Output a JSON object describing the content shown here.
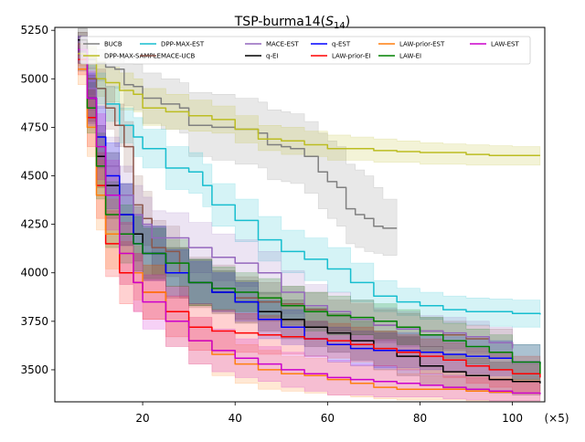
{
  "chart_data": {
    "type": "line",
    "title_main": "TSP-burma14(",
    "title_sub_var": "S",
    "title_sub_idx": "14",
    "title_close": ")",
    "x_multiplier_label": "(×5)",
    "xlim": [
      1,
      107
    ],
    "ylim": [
      3335,
      5265
    ],
    "xticks": [
      20,
      40,
      60,
      80,
      100
    ],
    "yticks": [
      3500,
      3750,
      4000,
      4250,
      4500,
      4750,
      5000,
      5250
    ],
    "legend_placement": "top-center, 6 columns",
    "series": [
      {
        "name": "BUCB",
        "color": "#808080",
        "x": [
          6,
          8,
          10,
          12,
          14,
          16,
          18,
          20,
          24,
          28,
          30,
          35,
          40,
          45,
          47,
          50,
          52,
          55,
          58,
          60,
          62,
          64,
          66,
          68,
          70,
          72,
          75
        ],
        "y": [
          5180,
          5100,
          5080,
          5060,
          5050,
          4970,
          4960,
          4900,
          4870,
          4850,
          4760,
          4750,
          4740,
          4720,
          4660,
          4650,
          4640,
          4600,
          4520,
          4470,
          4440,
          4330,
          4300,
          4280,
          4240,
          4230,
          4230
        ],
        "upper": [
          5240,
          5160,
          5150,
          5140,
          5130,
          5080,
          5075,
          5030,
          5000,
          4980,
          4930,
          4920,
          4900,
          4880,
          4840,
          4830,
          4820,
          4780,
          4720,
          4680,
          4650,
          4560,
          4530,
          4500,
          4440,
          4380,
          4360
        ],
        "lower": [
          5120,
          5050,
          4990,
          4960,
          4950,
          4860,
          4840,
          4770,
          4740,
          4720,
          4600,
          4580,
          4560,
          4540,
          4480,
          4470,
          4460,
          4410,
          4330,
          4280,
          4240,
          4150,
          4130,
          4110,
          4100,
          4090,
          4090
        ]
      },
      {
        "name": "DPP-MAX-SAMPLE",
        "color": "#bcbd22",
        "x": [
          6,
          8,
          10,
          12,
          15,
          18,
          20,
          25,
          30,
          35,
          40,
          45,
          50,
          55,
          60,
          65,
          70,
          75,
          80,
          85,
          90,
          95,
          100,
          106
        ],
        "y": [
          5130,
          5110,
          5000,
          4980,
          4940,
          4920,
          4850,
          4830,
          4810,
          4790,
          4740,
          4690,
          4680,
          4660,
          4640,
          4640,
          4630,
          4625,
          4620,
          4620,
          4610,
          4605,
          4605,
          4605
        ],
        "upper": [
          5200,
          5170,
          5090,
          5060,
          5030,
          5000,
          4950,
          4920,
          4890,
          4860,
          4810,
          4760,
          4750,
          4730,
          4710,
          4700,
          4690,
          4680,
          4670,
          4665,
          4660,
          4655,
          4650,
          4650
        ],
        "lower": [
          5070,
          5050,
          4910,
          4880,
          4840,
          4830,
          4760,
          4740,
          4730,
          4720,
          4670,
          4630,
          4610,
          4600,
          4580,
          4580,
          4570,
          4570,
          4560,
          4560,
          4555,
          4555,
          4555,
          4555
        ]
      },
      {
        "name": "DPP-MAX-EST",
        "color": "#17becf",
        "x": [
          6,
          8,
          10,
          12,
          15,
          18,
          20,
          25,
          30,
          33,
          35,
          40,
          45,
          50,
          55,
          60,
          65,
          70,
          75,
          80,
          85,
          90,
          95,
          100,
          106
        ],
        "y": [
          5100,
          5000,
          4950,
          4870,
          4760,
          4700,
          4640,
          4540,
          4520,
          4450,
          4350,
          4270,
          4170,
          4110,
          4070,
          4020,
          3950,
          3880,
          3850,
          3830,
          3810,
          3800,
          3800,
          3790,
          3785
        ],
        "upper": [
          5150,
          5070,
          5030,
          4960,
          4850,
          4800,
          4740,
          4650,
          4620,
          4560,
          4460,
          4380,
          4290,
          4220,
          4180,
          4130,
          4050,
          3960,
          3920,
          3900,
          3880,
          3870,
          3865,
          3860,
          3855
        ],
        "lower": [
          5040,
          4920,
          4870,
          4780,
          4670,
          4600,
          4540,
          4430,
          4410,
          4340,
          4240,
          4160,
          4060,
          4000,
          3960,
          3900,
          3850,
          3800,
          3780,
          3760,
          3740,
          3730,
          3725,
          3720,
          3715
        ]
      },
      {
        "name": "MACE-UCB",
        "color": "#8c564b",
        "x": [
          6,
          8,
          10,
          12,
          14,
          16,
          18,
          20,
          22,
          25,
          28,
          30,
          35,
          40,
          45,
          50,
          55,
          60,
          65,
          70,
          75,
          80,
          85,
          90,
          95,
          100
        ],
        "y": [
          5180,
          5000,
          4950,
          4850,
          4760,
          4650,
          4350,
          4280,
          4130,
          4110,
          4000,
          3950,
          3920,
          3870,
          3850,
          3840,
          3810,
          3780,
          3760,
          3730,
          3710,
          3700,
          3680,
          3660,
          3640,
          3620
        ],
        "upper": [
          5240,
          5100,
          5050,
          4960,
          4870,
          4780,
          4500,
          4420,
          4270,
          4240,
          4130,
          4080,
          4040,
          3980,
          3950,
          3930,
          3900,
          3860,
          3840,
          3810,
          3790,
          3770,
          3750,
          3730,
          3710,
          3690
        ],
        "lower": [
          5120,
          4900,
          4850,
          4740,
          4650,
          4520,
          4200,
          4140,
          3990,
          3980,
          3870,
          3820,
          3800,
          3760,
          3750,
          3750,
          3720,
          3700,
          3680,
          3650,
          3630,
          3620,
          3600,
          3580,
          3560,
          3550
        ]
      },
      {
        "name": "MACE-EST",
        "color": "#9467bd",
        "x": [
          6,
          8,
          10,
          12,
          15,
          18,
          20,
          22,
          25,
          30,
          35,
          40,
          45,
          50,
          55,
          60,
          65,
          70,
          75,
          80,
          85,
          90,
          95,
          100
        ],
        "y": [
          5100,
          4950,
          4700,
          4550,
          4400,
          4300,
          4250,
          4180,
          4180,
          4130,
          4080,
          4050,
          4000,
          3900,
          3830,
          3800,
          3760,
          3730,
          3710,
          3700,
          3690,
          3670,
          3640,
          3610
        ],
        "upper": [
          5160,
          5060,
          4850,
          4700,
          4550,
          4450,
          4390,
          4320,
          4310,
          4260,
          4200,
          4170,
          4110,
          4010,
          3940,
          3900,
          3860,
          3820,
          3800,
          3780,
          3770,
          3750,
          3720,
          3690
        ],
        "lower": [
          5040,
          4840,
          4550,
          4400,
          4250,
          4150,
          4110,
          4040,
          4050,
          4000,
          3960,
          3930,
          3890,
          3790,
          3720,
          3700,
          3660,
          3640,
          3620,
          3620,
          3610,
          3590,
          3560,
          3530
        ]
      },
      {
        "name": "q-EI",
        "color": "#000000",
        "x": [
          6,
          8,
          10,
          12,
          15,
          18,
          20,
          25,
          30,
          35,
          40,
          45,
          50,
          55,
          60,
          65,
          70,
          75,
          80,
          85,
          90,
          95,
          100,
          106
        ],
        "y": [
          5200,
          4900,
          4600,
          4450,
          4300,
          4200,
          4100,
          4000,
          3950,
          3900,
          3850,
          3800,
          3760,
          3720,
          3690,
          3650,
          3600,
          3570,
          3520,
          3490,
          3470,
          3450,
          3440,
          3430
        ],
        "upper": [
          5260,
          5020,
          4760,
          4620,
          4460,
          4340,
          4240,
          4130,
          4070,
          4010,
          3960,
          3900,
          3860,
          3820,
          3790,
          3750,
          3700,
          3670,
          3620,
          3580,
          3560,
          3540,
          3530,
          3520
        ],
        "lower": [
          5140,
          4780,
          4440,
          4280,
          4140,
          4060,
          3960,
          3870,
          3830,
          3790,
          3740,
          3700,
          3660,
          3620,
          3590,
          3550,
          3500,
          3470,
          3420,
          3400,
          3390,
          3380,
          3370,
          3365
        ]
      },
      {
        "name": "q-EST",
        "color": "#0000ff",
        "x": [
          6,
          8,
          10,
          12,
          15,
          18,
          20,
          25,
          30,
          35,
          40,
          45,
          50,
          55,
          60,
          65,
          70,
          75,
          80,
          85,
          90,
          95,
          100,
          106
        ],
        "y": [
          5150,
          4900,
          4700,
          4500,
          4300,
          4150,
          4100,
          4000,
          3950,
          3900,
          3850,
          3760,
          3720,
          3660,
          3630,
          3610,
          3600,
          3600,
          3590,
          3580,
          3570,
          3560,
          3540,
          3530
        ],
        "upper": [
          5220,
          5030,
          4860,
          4670,
          4460,
          4300,
          4240,
          4120,
          4060,
          4000,
          3950,
          3860,
          3810,
          3750,
          3720,
          3700,
          3690,
          3690,
          3680,
          3670,
          3660,
          3650,
          3630,
          3620
        ],
        "lower": [
          5080,
          4770,
          4540,
          4330,
          4140,
          4000,
          3960,
          3880,
          3840,
          3800,
          3750,
          3660,
          3630,
          3570,
          3540,
          3520,
          3510,
          3510,
          3500,
          3490,
          3480,
          3470,
          3450,
          3440
        ]
      },
      {
        "name": "LAW-prior-EI",
        "color": "#ff0000",
        "x": [
          6,
          8,
          10,
          12,
          15,
          18,
          20,
          25,
          30,
          35,
          40,
          45,
          50,
          55,
          60,
          65,
          70,
          75,
          80,
          85,
          90,
          95,
          100,
          106
        ],
        "y": [
          5100,
          4800,
          4450,
          4150,
          4000,
          3950,
          3900,
          3800,
          3720,
          3700,
          3690,
          3680,
          3670,
          3660,
          3650,
          3630,
          3610,
          3590,
          3570,
          3550,
          3520,
          3500,
          3480,
          3460
        ],
        "upper": [
          5180,
          4950,
          4620,
          4320,
          4160,
          4100,
          4040,
          3930,
          3840,
          3810,
          3790,
          3780,
          3760,
          3750,
          3740,
          3720,
          3700,
          3680,
          3660,
          3640,
          3610,
          3590,
          3570,
          3550
        ],
        "lower": [
          5020,
          4650,
          4280,
          3980,
          3840,
          3800,
          3760,
          3670,
          3600,
          3590,
          3590,
          3580,
          3580,
          3570,
          3560,
          3540,
          3520,
          3500,
          3480,
          3460,
          3430,
          3410,
          3390,
          3370
        ]
      },
      {
        "name": "LAW-prior-EST",
        "color": "#ff7f0e",
        "x": [
          6,
          8,
          10,
          12,
          15,
          18,
          20,
          25,
          30,
          35,
          40,
          45,
          50,
          55,
          60,
          65,
          70,
          75,
          80,
          85,
          90,
          95,
          100,
          106
        ],
        "y": [
          5050,
          4750,
          4400,
          4200,
          4100,
          4000,
          3900,
          3750,
          3650,
          3580,
          3530,
          3500,
          3480,
          3470,
          3450,
          3430,
          3410,
          3400,
          3400,
          3400,
          3390,
          3385,
          3380,
          3380
        ],
        "upper": [
          5130,
          4900,
          4580,
          4380,
          4260,
          4140,
          4040,
          3880,
          3770,
          3690,
          3630,
          3600,
          3570,
          3560,
          3540,
          3520,
          3500,
          3480,
          3470,
          3465,
          3460,
          3455,
          3450,
          3450
        ],
        "lower": [
          4970,
          4600,
          4220,
          4020,
          3940,
          3860,
          3760,
          3620,
          3530,
          3470,
          3430,
          3400,
          3390,
          3380,
          3370,
          3360,
          3350,
          3345,
          3345,
          3345,
          3340,
          3340,
          3340,
          3340
        ]
      },
      {
        "name": "LAW-EI",
        "color": "#008000",
        "x": [
          6,
          8,
          10,
          12,
          15,
          18,
          20,
          25,
          30,
          35,
          40,
          45,
          50,
          55,
          60,
          65,
          70,
          75,
          80,
          85,
          90,
          95,
          100,
          106
        ],
        "y": [
          5150,
          4850,
          4550,
          4300,
          4200,
          4150,
          4100,
          4050,
          3950,
          3920,
          3900,
          3870,
          3830,
          3800,
          3780,
          3770,
          3750,
          3720,
          3680,
          3650,
          3620,
          3590,
          3540,
          3480
        ],
        "upper": [
          5220,
          4980,
          4720,
          4470,
          4350,
          4290,
          4230,
          4170,
          4070,
          4030,
          4000,
          3970,
          3930,
          3900,
          3880,
          3860,
          3840,
          3810,
          3770,
          3740,
          3710,
          3680,
          3630,
          3570
        ],
        "lower": [
          5080,
          4720,
          4380,
          4130,
          4050,
          4010,
          3970,
          3930,
          3830,
          3810,
          3800,
          3770,
          3730,
          3700,
          3680,
          3680,
          3660,
          3630,
          3590,
          3560,
          3530,
          3500,
          3450,
          3390
        ]
      },
      {
        "name": "LAW-EST",
        "color": "#cc00cc",
        "x": [
          6,
          8,
          10,
          12,
          15,
          18,
          20,
          25,
          30,
          35,
          40,
          45,
          50,
          55,
          60,
          65,
          70,
          75,
          80,
          85,
          90,
          95,
          100,
          106
        ],
        "y": [
          5150,
          4900,
          4650,
          4400,
          4100,
          3950,
          3850,
          3750,
          3650,
          3600,
          3560,
          3530,
          3500,
          3480,
          3460,
          3450,
          3440,
          3430,
          3420,
          3410,
          3400,
          3390,
          3380,
          3375
        ],
        "upper": [
          5220,
          5040,
          4820,
          4580,
          4260,
          4100,
          3990,
          3880,
          3770,
          3710,
          3660,
          3620,
          3590,
          3570,
          3550,
          3530,
          3520,
          3500,
          3480,
          3470,
          3460,
          3450,
          3440,
          3435
        ],
        "lower": [
          5080,
          4760,
          4480,
          4220,
          3940,
          3800,
          3710,
          3620,
          3530,
          3490,
          3460,
          3440,
          3410,
          3390,
          3370,
          3370,
          3360,
          3360,
          3360,
          3350,
          3345,
          3340,
          3340,
          3340
        ]
      }
    ]
  }
}
